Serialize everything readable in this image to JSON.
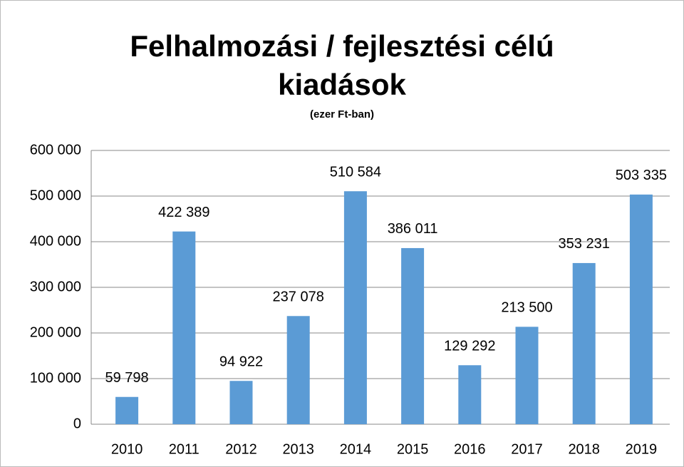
{
  "chart_data": {
    "type": "bar",
    "title": "Felhalmozási / fejlesztési célú kiadások",
    "subtitle": "(ezer Ft-ban)",
    "categories": [
      "2010",
      "2011",
      "2012",
      "2013",
      "2014",
      "2015",
      "2016",
      "2017",
      "2018",
      "2019"
    ],
    "values": [
      59798,
      422389,
      94922,
      237078,
      510584,
      386011,
      129292,
      213500,
      353231,
      503335
    ],
    "value_labels": [
      "59 798",
      "422 389",
      "94 922",
      "237 078",
      "510 584",
      "386 011",
      "129 292",
      "213 500",
      "353 231",
      "503 335"
    ],
    "color": "#5b9bd5",
    "ylim": [
      0,
      600000
    ],
    "yticks": [
      {
        "value": 0,
        "label": "0"
      },
      {
        "value": 100000,
        "label": "100 000"
      },
      {
        "value": 200000,
        "label": "200 000"
      },
      {
        "value": 300000,
        "label": "300 000"
      },
      {
        "value": 400000,
        "label": "400 000"
      },
      {
        "value": 500000,
        "label": "500 000"
      },
      {
        "value": 600000,
        "label": "600 000"
      }
    ],
    "grid": true
  }
}
